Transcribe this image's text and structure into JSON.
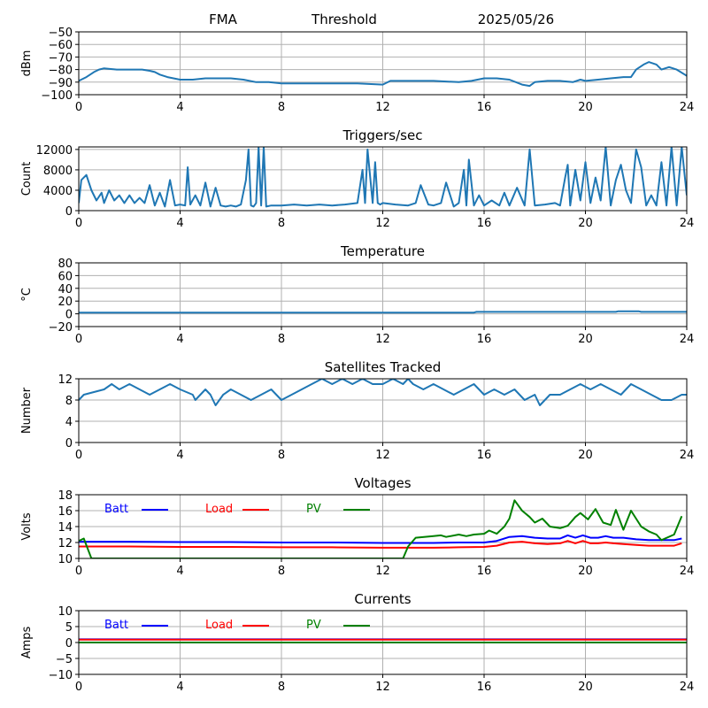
{
  "header": {
    "site": "FMA",
    "label": "Threshold",
    "date": "2025/05/26"
  },
  "colors": {
    "series": "#1f77b4",
    "batt": "#0000ff",
    "load": "#ff0000",
    "pv": "#008000",
    "grid": "#b0b0b0"
  },
  "chart_data": [
    {
      "type": "line",
      "title": "",
      "ylabel": "dBm",
      "xlim": [
        0,
        24
      ],
      "ylim": [
        -100,
        -50
      ],
      "xticks": [
        0,
        4,
        8,
        12,
        16,
        20,
        24
      ],
      "yticks": [
        -100,
        -90,
        -80,
        -70,
        -60,
        -50
      ],
      "grid": true,
      "series": [
        {
          "x": [
            0,
            0.3,
            0.6,
            0.8,
            1.0,
            1.5,
            2.0,
            2.5,
            2.8,
            3.0,
            3.2,
            3.5,
            4.0,
            4.5,
            5.0,
            5.5,
            6.0,
            6.5,
            7.0,
            7.5,
            8.0,
            9.0,
            10.0,
            11.0,
            12.0,
            12.3,
            13.0,
            14.0,
            15.0,
            15.5,
            16.0,
            16.5,
            17.0,
            17.5,
            17.8,
            18.0,
            18.5,
            19.0,
            19.5,
            19.8,
            20.0,
            20.5,
            21.0,
            21.5,
            21.8,
            22.0,
            22.3,
            22.5,
            22.8,
            23.0,
            23.3,
            23.6,
            24.0
          ],
          "y": [
            -89,
            -86,
            -82,
            -80,
            -79,
            -80,
            -80,
            -80,
            -81,
            -82,
            -84,
            -86,
            -88,
            -88,
            -87,
            -87,
            -87,
            -88,
            -90,
            -90,
            -91,
            -91,
            -91,
            -91,
            -92,
            -89,
            -89,
            -89,
            -90,
            -89,
            -87,
            -87,
            -88,
            -92,
            -93,
            -90,
            -89,
            -89,
            -90,
            -88,
            -89,
            -88,
            -87,
            -86,
            -86,
            -80,
            -76,
            -74,
            -76,
            -80,
            -78,
            -80,
            -85
          ]
        }
      ]
    },
    {
      "type": "line",
      "title": "Triggers/sec",
      "ylabel": "Count",
      "xlim": [
        0,
        24
      ],
      "ylim": [
        0,
        12500
      ],
      "xticks": [
        0,
        4,
        8,
        12,
        16,
        20,
        24
      ],
      "yticks": [
        0,
        4000,
        8000,
        12000
      ],
      "grid": true,
      "series": [
        {
          "x": [
            0,
            0.1,
            0.3,
            0.5,
            0.7,
            0.9,
            1.0,
            1.2,
            1.4,
            1.6,
            1.8,
            2.0,
            2.2,
            2.4,
            2.6,
            2.8,
            3.0,
            3.2,
            3.4,
            3.6,
            3.8,
            4.0,
            4.2,
            4.3,
            4.4,
            4.6,
            4.8,
            5.0,
            5.2,
            5.4,
            5.6,
            5.8,
            6.0,
            6.2,
            6.4,
            6.6,
            6.7,
            6.8,
            6.9,
            7.0,
            7.1,
            7.2,
            7.3,
            7.4,
            7.6,
            8.0,
            8.5,
            9.0,
            9.5,
            10.0,
            10.5,
            11.0,
            11.2,
            11.3,
            11.4,
            11.6,
            11.7,
            11.8,
            11.9,
            12.0,
            12.5,
            13.0,
            13.3,
            13.5,
            13.8,
            14.0,
            14.3,
            14.5,
            14.8,
            15.0,
            15.2,
            15.3,
            15.4,
            15.6,
            15.8,
            16.0,
            16.3,
            16.6,
            16.8,
            17.0,
            17.3,
            17.6,
            17.8,
            18.0,
            18.4,
            18.8,
            19.0,
            19.2,
            19.3,
            19.4,
            19.6,
            19.8,
            20.0,
            20.2,
            20.4,
            20.6,
            20.8,
            21.0,
            21.2,
            21.4,
            21.6,
            21.8,
            22.0,
            22.2,
            22.4,
            22.6,
            22.8,
            23.0,
            23.2,
            23.4,
            23.6,
            23.8,
            24.0
          ],
          "y": [
            1500,
            6000,
            7000,
            4000,
            2000,
            3500,
            1500,
            4000,
            2000,
            3000,
            1500,
            3000,
            1500,
            2500,
            1500,
            5000,
            1000,
            3500,
            800,
            6000,
            1000,
            1200,
            1000,
            8500,
            1200,
            3000,
            1000,
            5500,
            800,
            4500,
            1000,
            800,
            1000,
            800,
            1200,
            6000,
            12000,
            1000,
            800,
            1500,
            12500,
            1000,
            12500,
            800,
            1000,
            1000,
            1200,
            1000,
            1200,
            1000,
            1200,
            1500,
            8000,
            1500,
            12000,
            1500,
            9500,
            1500,
            1200,
            1500,
            1200,
            1000,
            1500,
            5000,
            1200,
            1000,
            1500,
            5500,
            800,
            1500,
            8000,
            1000,
            10000,
            1000,
            3000,
            1000,
            2000,
            1000,
            3500,
            1000,
            4500,
            1000,
            12000,
            1000,
            1200,
            1500,
            1000,
            6500,
            9000,
            1000,
            8000,
            2000,
            9500,
            1500,
            6500,
            2000,
            12500,
            1000,
            6000,
            9000,
            4000,
            1500,
            12000,
            8500,
            1000,
            3000,
            1000,
            9500,
            1000,
            12500,
            1000,
            12500,
            3000
          ]
        }
      ]
    },
    {
      "type": "line",
      "title": "Temperature",
      "ylabel": "°C",
      "xlim": [
        0,
        24
      ],
      "ylim": [
        -20,
        80
      ],
      "xticks": [
        0,
        4,
        8,
        12,
        16,
        20,
        24
      ],
      "yticks": [
        -20,
        0,
        20,
        40,
        60,
        80
      ],
      "grid": true,
      "series": [
        {
          "x": [
            0,
            15.6,
            15.7,
            21.2,
            21.3,
            22.1,
            22.2,
            24.0
          ],
          "y": [
            2,
            2,
            3,
            3,
            4,
            4,
            3,
            3
          ]
        }
      ]
    },
    {
      "type": "line",
      "title": "Satellites Tracked",
      "ylabel": "Number",
      "xlim": [
        0,
        24
      ],
      "ylim": [
        0,
        12
      ],
      "xticks": [
        0,
        4,
        8,
        12,
        16,
        20,
        24
      ],
      "yticks": [
        0,
        4,
        8,
        12
      ],
      "grid": true,
      "series": [
        {
          "x": [
            0,
            0.2,
            1.0,
            1.3,
            1.6,
            2.0,
            2.4,
            2.8,
            3.2,
            3.6,
            4.0,
            4.5,
            4.6,
            4.8,
            5.0,
            5.2,
            5.4,
            5.7,
            6.0,
            6.4,
            6.8,
            7.2,
            7.6,
            8.0,
            8.4,
            8.8,
            9.2,
            9.6,
            10.0,
            10.4,
            10.8,
            11.2,
            11.6,
            12.0,
            12.4,
            12.8,
            13.0,
            13.2,
            13.6,
            14.0,
            14.4,
            14.8,
            15.2,
            15.6,
            16.0,
            16.4,
            16.8,
            17.2,
            17.6,
            18.0,
            18.2,
            18.6,
            19.0,
            19.4,
            19.8,
            20.2,
            20.6,
            21.0,
            21.4,
            21.8,
            22.2,
            22.6,
            23.0,
            23.4,
            23.8,
            24.0
          ],
          "y": [
            8,
            9,
            10,
            11,
            10,
            11,
            10,
            9,
            10,
            11,
            10,
            9,
            8,
            9,
            10,
            9,
            7,
            9,
            10,
            9,
            8,
            9,
            10,
            8,
            9,
            10,
            11,
            12,
            11,
            12,
            11,
            12,
            11,
            11,
            12,
            11,
            12,
            11,
            10,
            11,
            10,
            9,
            10,
            11,
            9,
            10,
            9,
            10,
            8,
            9,
            7,
            9,
            9,
            10,
            11,
            10,
            11,
            10,
            9,
            11,
            10,
            9,
            8,
            8,
            9,
            9
          ]
        }
      ]
    },
    {
      "type": "line",
      "title": "Voltages",
      "ylabel": "Volts",
      "xlim": [
        0,
        24
      ],
      "ylim": [
        10,
        18
      ],
      "xticks": [
        0,
        4,
        8,
        12,
        16,
        20,
        24
      ],
      "yticks": [
        10,
        12,
        14,
        16,
        18
      ],
      "grid": true,
      "legend_position": "upper-left",
      "series": [
        {
          "name": "Batt",
          "x": [
            0,
            2,
            4,
            6,
            8,
            10,
            12,
            14,
            15,
            16,
            16.5,
            17,
            17.5,
            18,
            18.5,
            19,
            19.3,
            19.6,
            19.9,
            20.2,
            20.5,
            20.8,
            21.1,
            21.5,
            22,
            22.5,
            23,
            23.5,
            23.8
          ],
          "y": [
            12.1,
            12.1,
            12.05,
            12.05,
            12.0,
            12.0,
            11.95,
            11.95,
            12.0,
            12.0,
            12.2,
            12.7,
            12.8,
            12.6,
            12.5,
            12.5,
            12.9,
            12.6,
            12.9,
            12.6,
            12.6,
            12.8,
            12.6,
            12.6,
            12.4,
            12.3,
            12.3,
            12.3,
            12.5
          ]
        },
        {
          "name": "Load",
          "x": [
            0,
            2,
            4,
            6,
            8,
            10,
            12,
            14,
            15,
            16,
            16.5,
            17,
            17.5,
            18,
            18.5,
            19,
            19.3,
            19.6,
            19.9,
            20.2,
            20.5,
            20.8,
            21.1,
            21.5,
            22,
            22.5,
            23,
            23.5,
            23.8
          ],
          "y": [
            11.5,
            11.5,
            11.45,
            11.45,
            11.4,
            11.4,
            11.35,
            11.35,
            11.4,
            11.45,
            11.6,
            12.0,
            12.1,
            11.9,
            11.8,
            11.9,
            12.2,
            11.9,
            12.2,
            11.9,
            11.9,
            12.0,
            11.9,
            11.8,
            11.7,
            11.6,
            11.6,
            11.6,
            11.9
          ]
        },
        {
          "name": "PV",
          "x": [
            0,
            0.2,
            0.5,
            12.8,
            13.0,
            13.3,
            14.0,
            14.3,
            14.5,
            15.0,
            15.3,
            15.6,
            16.0,
            16.2,
            16.5,
            16.8,
            17.0,
            17.2,
            17.5,
            17.8,
            18.0,
            18.3,
            18.6,
            19.0,
            19.3,
            19.6,
            19.8,
            20.1,
            20.4,
            20.7,
            21.0,
            21.2,
            21.5,
            21.8,
            22.2,
            22.5,
            22.8,
            23.0,
            23.5,
            23.8
          ],
          "y": [
            12.2,
            12.5,
            10.0,
            10.0,
            11.5,
            12.6,
            12.8,
            12.9,
            12.7,
            13.0,
            12.8,
            13.0,
            13.1,
            13.5,
            13.1,
            14.0,
            15.0,
            17.3,
            16.0,
            15.2,
            14.5,
            15.0,
            14.0,
            13.8,
            14.1,
            15.2,
            15.7,
            14.9,
            16.2,
            14.5,
            14.2,
            16.1,
            13.6,
            16.0,
            14.0,
            13.4,
            13.0,
            12.3,
            13.0,
            15.3
          ]
        }
      ]
    },
    {
      "type": "line",
      "title": "Currents",
      "ylabel": "Amps",
      "xlim": [
        0,
        24
      ],
      "ylim": [
        -10,
        10
      ],
      "xticks": [
        0,
        4,
        8,
        12,
        16,
        20,
        24
      ],
      "yticks": [
        -10,
        -5,
        0,
        5,
        10
      ],
      "grid": true,
      "legend_position": "upper-left",
      "series": [
        {
          "name": "Batt",
          "x": [
            0,
            24
          ],
          "y": [
            1.0,
            1.0
          ]
        },
        {
          "name": "Load",
          "x": [
            0,
            24
          ],
          "y": [
            0.9,
            0.9
          ]
        },
        {
          "name": "PV",
          "x": [
            0,
            24
          ],
          "y": [
            0.0,
            0.0
          ]
        }
      ]
    }
  ]
}
